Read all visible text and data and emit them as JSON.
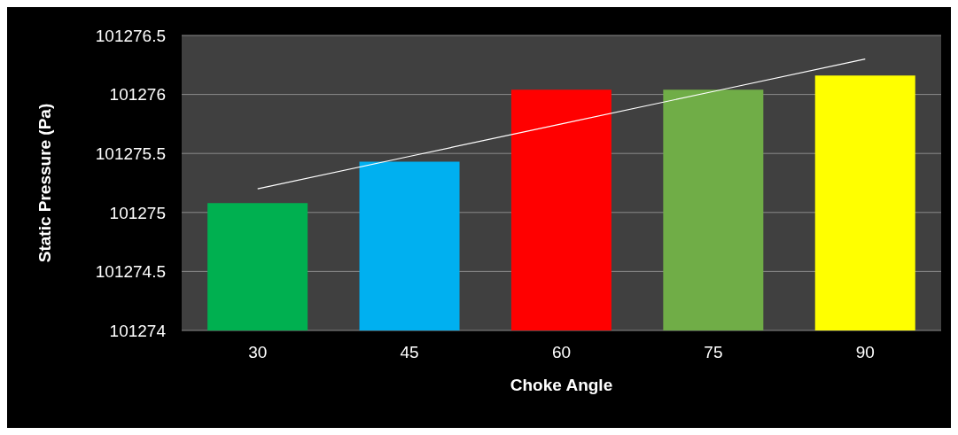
{
  "chart_data": {
    "type": "bar",
    "xlabel": "Choke Angle",
    "ylabel": "Static Pressure (Pa)",
    "categories": [
      "30",
      "45",
      "60",
      "75",
      "90"
    ],
    "series": [
      {
        "values": [
          101275.08,
          101275.43,
          101276.04,
          101276.04,
          101276.16
        ],
        "colors": [
          "#00b050",
          "#00b0f0",
          "#ff0000",
          "#70ad47",
          "#ffff00"
        ]
      },
      {
        "type": "line",
        "color": "#ffffff",
        "values": [
          101275.2,
          101275.475,
          101275.75,
          101276.025,
          101276.3
        ]
      }
    ],
    "ylim": [
      101274,
      101276.5
    ],
    "yticks": [
      101274,
      101274.5,
      101275,
      101275.5,
      101276,
      101276.5
    ],
    "grid": "y"
  }
}
